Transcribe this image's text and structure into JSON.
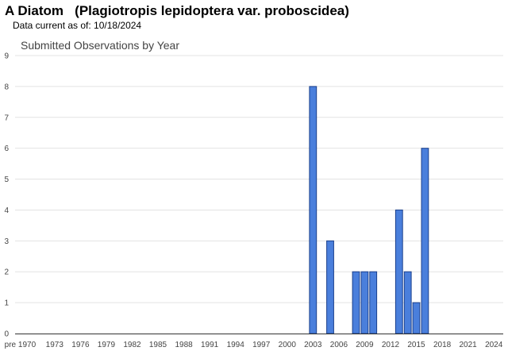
{
  "header": {
    "title": "A Diatom   (Plagiotropis lepidoptera var. proboscidea)",
    "data_current_label": "Data current as of: ",
    "data_current_date": "10/18/2024"
  },
  "chart_data": {
    "type": "bar",
    "title": "Submitted Observations by Year",
    "xlabel": "",
    "ylabel": "",
    "ylim": [
      0,
      9
    ],
    "yticks": [
      0,
      1,
      2,
      3,
      4,
      5,
      6,
      7,
      8,
      9
    ],
    "grid": true,
    "legend": "none",
    "bar_color": "#4a7fdc",
    "bar_outline": "#1a3f8c",
    "x_tick_labels": [
      "pre 1970",
      "1973",
      "1976",
      "1979",
      "1982",
      "1985",
      "1988",
      "1991",
      "1994",
      "1997",
      "2000",
      "2003",
      "2006",
      "2009",
      "2012",
      "2015",
      "2018",
      "2021",
      "2024"
    ],
    "categories": [
      "pre 1970",
      "1970",
      "1971",
      "1972",
      "1973",
      "1974",
      "1975",
      "1976",
      "1977",
      "1978",
      "1979",
      "1980",
      "1981",
      "1982",
      "1983",
      "1984",
      "1985",
      "1986",
      "1987",
      "1988",
      "1989",
      "1990",
      "1991",
      "1992",
      "1993",
      "1994",
      "1995",
      "1996",
      "1997",
      "1998",
      "1999",
      "2000",
      "2001",
      "2002",
      "2003",
      "2004",
      "2005",
      "2006",
      "2007",
      "2008",
      "2009",
      "2010",
      "2011",
      "2012",
      "2013",
      "2014",
      "2015",
      "2016",
      "2017",
      "2018",
      "2019",
      "2020",
      "2021",
      "2022",
      "2023",
      "2024"
    ],
    "values": [
      0,
      0,
      0,
      0,
      0,
      0,
      0,
      0,
      0,
      0,
      0,
      0,
      0,
      0,
      0,
      0,
      0,
      0,
      0,
      0,
      0,
      0,
      0,
      0,
      0,
      0,
      0,
      0,
      0,
      0,
      0,
      0,
      0,
      0,
      8,
      0,
      3,
      0,
      0,
      2,
      2,
      2,
      0,
      0,
      4,
      2,
      1,
      6,
      0,
      0,
      0,
      0,
      0,
      0,
      0,
      0
    ]
  }
}
